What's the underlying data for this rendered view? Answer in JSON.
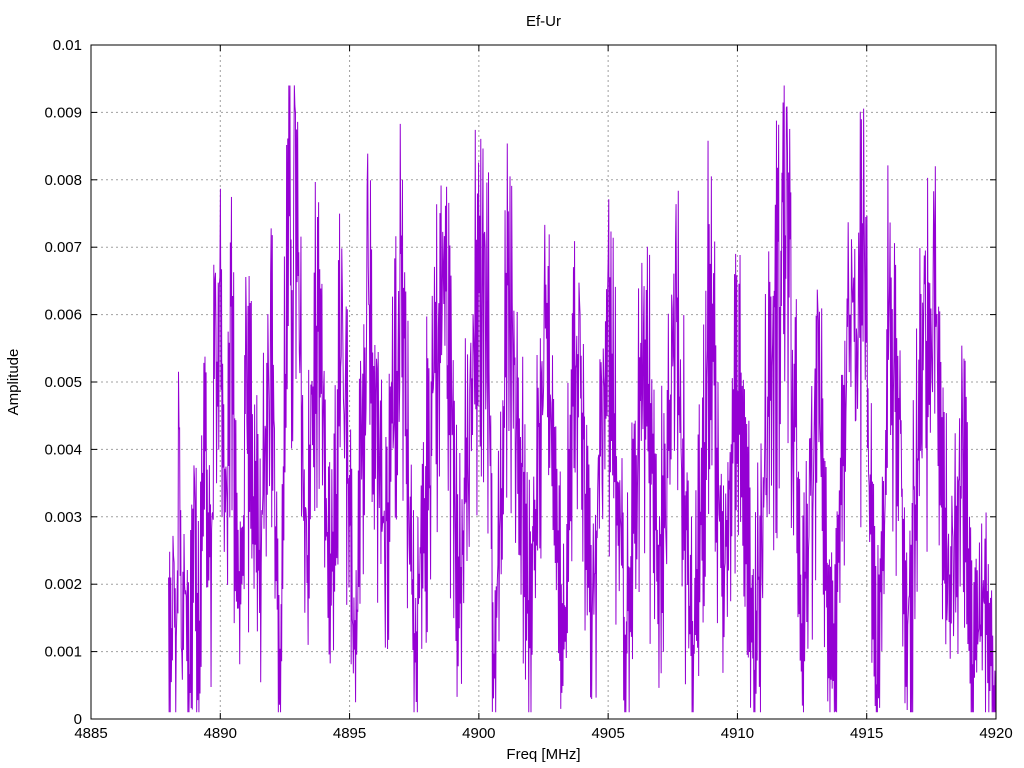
{
  "chart_data": {
    "type": "line",
    "title": "Ef-Ur",
    "xlabel": "Freq [MHz]",
    "ylabel": "Amplitude",
    "xlim": [
      4885,
      4920
    ],
    "ylim": [
      0,
      0.01
    ],
    "xticks": [
      4885,
      4890,
      4895,
      4900,
      4905,
      4910,
      4915,
      4920
    ],
    "xtick_labels": [
      "4885",
      "4890",
      "4895",
      "4900",
      "4905",
      "4910",
      "4915",
      "4920"
    ],
    "yticks": [
      0,
      0.001,
      0.002,
      0.003,
      0.004,
      0.005,
      0.006,
      0.007,
      0.008,
      0.009,
      0.01
    ],
    "ytick_labels": [
      "0",
      "0.001",
      "0.002",
      "0.003",
      "0.004",
      "0.005",
      "0.006",
      "0.007",
      "0.008",
      "0.009",
      "0.01"
    ],
    "grid": true,
    "series": [
      {
        "color": "#9400d3",
        "x_start": 4888.0,
        "x_end": 4920.0,
        "approx_points": [
          [
            4888.0,
            0.0021
          ],
          [
            4888.1,
            0.0004
          ],
          [
            4888.2,
            0.0026
          ],
          [
            4888.3,
            0.0012
          ],
          [
            4888.4,
            0.0045
          ],
          [
            4888.5,
            0.0007
          ],
          [
            4888.6,
            0.0028
          ],
          [
            4888.8,
            0.0005
          ],
          [
            4889.0,
            0.0036
          ],
          [
            4889.2,
            0.0014
          ],
          [
            4889.4,
            0.0055
          ],
          [
            4889.6,
            0.0024
          ],
          [
            4889.8,
            0.0067
          ],
          [
            4890.0,
            0.008
          ],
          [
            4890.2,
            0.003
          ],
          [
            4890.4,
            0.0073
          ],
          [
            4890.7,
            0.0015
          ],
          [
            4891.0,
            0.006
          ],
          [
            4891.5,
            0.0025
          ],
          [
            4892.0,
            0.0072
          ],
          [
            4892.3,
            0.0008
          ],
          [
            4892.6,
            0.0086
          ],
          [
            4892.9,
            0.0091
          ],
          [
            4893.3,
            0.003
          ],
          [
            4893.8,
            0.0077
          ],
          [
            4894.3,
            0.0016
          ],
          [
            4894.7,
            0.007
          ],
          [
            4895.2,
            0.0009
          ],
          [
            4895.7,
            0.0084
          ],
          [
            4896.3,
            0.003
          ],
          [
            4897.0,
            0.0072
          ],
          [
            4897.6,
            0.0013
          ],
          [
            4898.2,
            0.0063
          ],
          [
            4898.7,
            0.0077
          ],
          [
            4899.3,
            0.0022
          ],
          [
            4899.9,
            0.0071
          ],
          [
            4900.3,
            0.0082
          ],
          [
            4900.6,
            0.0005
          ],
          [
            4901.2,
            0.0081
          ],
          [
            4901.9,
            0.0017
          ],
          [
            4902.6,
            0.0065
          ],
          [
            4903.3,
            0.001
          ],
          [
            4903.7,
            0.0071
          ],
          [
            4904.4,
            0.002
          ],
          [
            4905.0,
            0.0069
          ],
          [
            4905.7,
            0.0014
          ],
          [
            4906.4,
            0.0065
          ],
          [
            4907.0,
            0.0025
          ],
          [
            4907.6,
            0.0071
          ],
          [
            4908.3,
            0.001
          ],
          [
            4908.9,
            0.0074
          ],
          [
            4909.5,
            0.0022
          ],
          [
            4910.1,
            0.0069
          ],
          [
            4910.6,
            0.0008
          ],
          [
            4911.3,
            0.0063
          ],
          [
            4911.9,
            0.0091
          ],
          [
            4912.5,
            0.0013
          ],
          [
            4913.1,
            0.0062
          ],
          [
            4913.7,
            0.0005
          ],
          [
            4914.3,
            0.0063
          ],
          [
            4914.9,
            0.0075
          ],
          [
            4915.4,
            0.0004
          ],
          [
            4915.9,
            0.0074
          ],
          [
            4916.6,
            0.0015
          ],
          [
            4917.2,
            0.006
          ],
          [
            4917.6,
            0.0074
          ],
          [
            4918.2,
            0.0021
          ],
          [
            4918.7,
            0.0048
          ],
          [
            4919.1,
            0.0008
          ],
          [
            4919.5,
            0.0021
          ],
          [
            4919.8,
            0.0008
          ],
          [
            4920.0,
            0.0004
          ]
        ]
      }
    ]
  }
}
